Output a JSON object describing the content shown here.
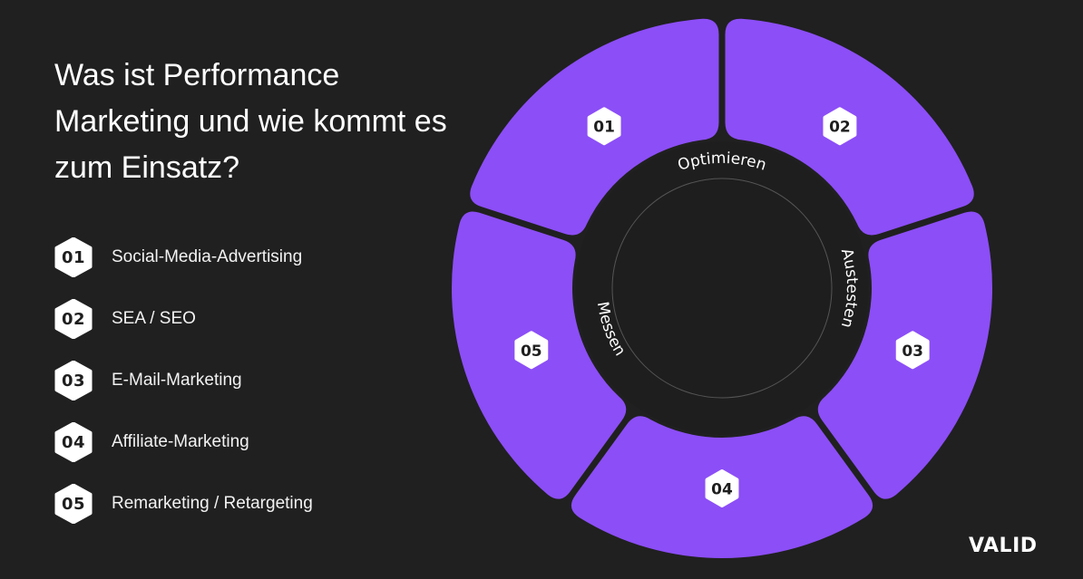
{
  "title": "Was ist Performance Marketing und wie kommt es zum Einsatz?",
  "legend": [
    {
      "num": "01",
      "label": "Social-Media-Advertising"
    },
    {
      "num": "02",
      "label": "SEA / SEO"
    },
    {
      "num": "03",
      "label": "E-Mail-Marketing"
    },
    {
      "num": "04",
      "label": "Affiliate-Marketing"
    },
    {
      "num": "05",
      "label": "Remarketing / Retargeting"
    }
  ],
  "cycle": {
    "segments": [
      "01",
      "02",
      "03",
      "04",
      "05"
    ],
    "phases": [
      "Optimieren",
      "Austesten",
      "Messen"
    ]
  },
  "colors": {
    "background": "#202020",
    "accent": "#8C4EF7",
    "badge": "#FFFFFF",
    "inner_circle": "#1E1E1E",
    "inner_ring": "#555555"
  },
  "logo": "VALID"
}
